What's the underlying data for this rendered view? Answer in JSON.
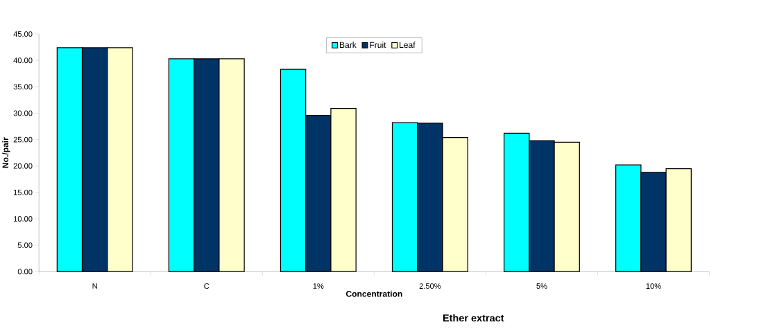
{
  "chart_data": {
    "type": "bar",
    "title": "Ether extract",
    "xlabel": "Concentration",
    "ylabel": "No./pair",
    "categories": [
      "N",
      "C",
      "1%",
      "2.50%",
      "5%",
      "10%"
    ],
    "series": [
      {
        "name": "Bark",
        "color": "#00ffff",
        "values": [
          42.4,
          40.3,
          38.3,
          28.2,
          26.2,
          20.2
        ]
      },
      {
        "name": "Fruit",
        "color": "#003366",
        "values": [
          42.4,
          40.3,
          29.6,
          28.1,
          24.8,
          18.8
        ]
      },
      {
        "name": "Leaf",
        "color": "#ffffcc",
        "values": [
          42.4,
          40.3,
          30.9,
          25.4,
          24.5,
          19.5
        ]
      }
    ],
    "ylim": [
      0,
      45
    ],
    "yticks": [
      {
        "value": 0,
        "label": "0.00"
      },
      {
        "value": 5,
        "label": "5.00"
      },
      {
        "value": 10,
        "label": "10.00"
      },
      {
        "value": 15,
        "label": "15.00"
      },
      {
        "value": 20,
        "label": "20.00"
      },
      {
        "value": 25,
        "label": "25.00"
      },
      {
        "value": 30,
        "label": "30.00"
      },
      {
        "value": 35,
        "label": "35.00"
      },
      {
        "value": 40,
        "label": "40.00"
      },
      {
        "value": 45,
        "label": "45.00"
      }
    ],
    "grid": false,
    "legend": "top"
  }
}
